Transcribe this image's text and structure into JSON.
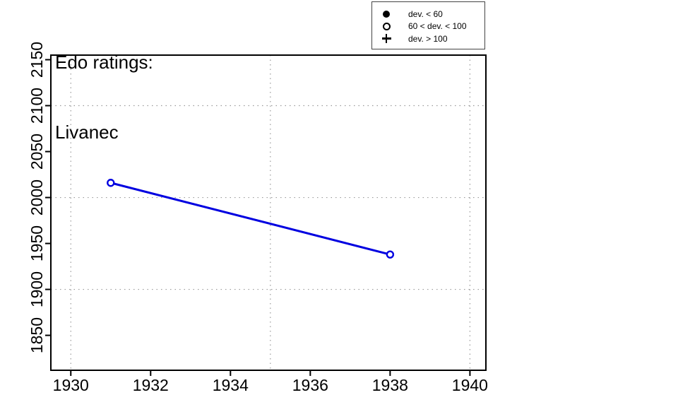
{
  "figure": {
    "title_line1": "Edo ratings:",
    "title_line2": "Livanec"
  },
  "legend": {
    "items": [
      {
        "symbol": "filled-circle",
        "label": "dev. < 60"
      },
      {
        "symbol": "open-circle",
        "label": "60 < dev. < 100"
      },
      {
        "symbol": "plus",
        "label": "dev. > 100"
      }
    ]
  },
  "chart_data": {
    "type": "line",
    "title": "Edo ratings: Livanec",
    "xlabel": "",
    "ylabel": "",
    "series": [
      {
        "name": "Livanec",
        "x": [
          1931,
          1938
        ],
        "y": [
          2016,
          1938
        ],
        "marker": "open-circle",
        "color": "#0000E0"
      }
    ],
    "xticks": [
      1930,
      1932,
      1934,
      1936,
      1938,
      1940
    ],
    "yticks": [
      1850,
      1900,
      1950,
      2000,
      2050,
      2100,
      2150
    ],
    "x_gridlines": [
      1930,
      1935,
      1940
    ],
    "y_gridlines": [
      1900,
      2000,
      2100
    ],
    "xlim": [
      1929.5,
      1940.4
    ],
    "ylim": [
      1812,
      2155
    ],
    "grid_style": "dotted",
    "legend_position": "top-right",
    "colors": {
      "series": "#0000E0",
      "grid": "#9A9A9A",
      "axis": "#000000",
      "text": "#000000",
      "background": "#FFFFFF"
    }
  }
}
